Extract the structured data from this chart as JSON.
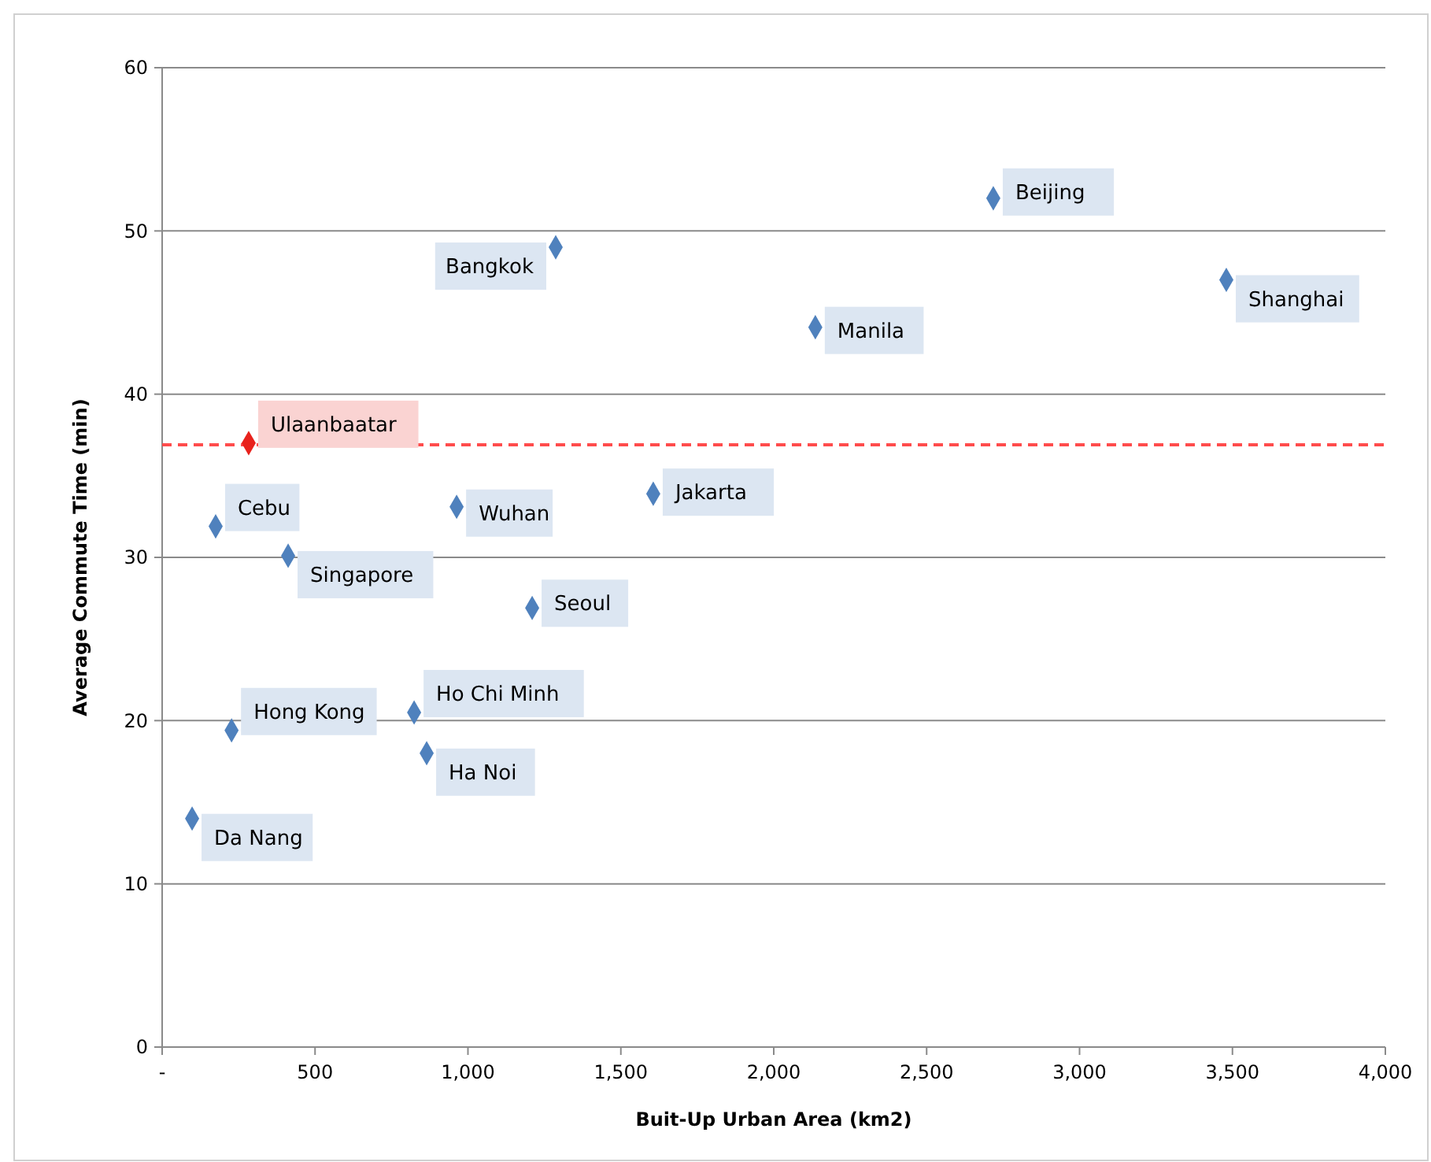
{
  "chart_data": {
    "type": "scatter",
    "xlabel": "Buit-Up Urban Area (km2)",
    "ylabel": "Average Commute Time (min)",
    "series": [
      {
        "name": "Beijing",
        "color": "#4f81bd",
        "x": [
          2718
        ],
        "values": [
          52
        ]
      },
      {
        "name": "Shanghai",
        "color": "#4f81bd",
        "x": [
          3480
        ],
        "values": [
          47
        ]
      },
      {
        "name": "Bangkok",
        "color": "#4f81bd",
        "x": [
          1287
        ],
        "values": [
          49
        ]
      },
      {
        "name": "Manila",
        "color": "#4f81bd",
        "x": [
          2136
        ],
        "values": [
          44.1
        ]
      },
      {
        "name": "Ulaanbaatar",
        "color": "#e8221c",
        "x": [
          283
        ],
        "values": [
          37
        ]
      },
      {
        "name": "Jakarta",
        "color": "#4f81bd",
        "x": [
          1606
        ],
        "values": [
          33.9
        ]
      },
      {
        "name": "Wuhan",
        "color": "#4f81bd",
        "x": [
          963
        ],
        "values": [
          33.1
        ]
      },
      {
        "name": "Cebu",
        "color": "#4f81bd",
        "x": [
          175
        ],
        "values": [
          31.9
        ]
      },
      {
        "name": "Singapore",
        "color": "#4f81bd",
        "x": [
          412
        ],
        "values": [
          30.1
        ]
      },
      {
        "name": "Seoul",
        "color": "#4f81bd",
        "x": [
          1210
        ],
        "values": [
          26.9
        ]
      },
      {
        "name": "Ho Chi Minh",
        "color": "#4f81bd",
        "x": [
          824
        ],
        "values": [
          20.5
        ]
      },
      {
        "name": "Hong Kong",
        "color": "#4f81bd",
        "x": [
          227
        ],
        "values": [
          19.4
        ]
      },
      {
        "name": "Ha Noi",
        "color": "#4f81bd",
        "x": [
          865
        ],
        "values": [
          18
        ]
      },
      {
        "name": "Da Nang",
        "color": "#4f81bd",
        "x": [
          98
        ],
        "values": [
          14
        ]
      }
    ],
    "marker": "diamond",
    "ref_lines": [
      {
        "axis": "y",
        "value": 36.9,
        "color": "#ff4c4c",
        "line_style": "dashed"
      }
    ],
    "xlim": [
      0,
      4000
    ],
    "xticks": [
      {
        "value": 0,
        "label": "-"
      },
      500,
      {
        "value": 1000,
        "label": "1,000"
      },
      {
        "value": 1500,
        "label": "1,500"
      },
      {
        "value": 2000,
        "label": "2,000"
      },
      {
        "value": 2500,
        "label": "2,500"
      },
      {
        "value": 3000,
        "label": "3,000"
      },
      {
        "value": 3500,
        "label": "3,500"
      },
      {
        "value": 4000,
        "label": "4,000"
      }
    ],
    "ylim": [
      0,
      60
    ],
    "yticks": [
      0,
      10,
      20,
      30,
      40,
      50,
      60
    ],
    "grid": "y"
  }
}
